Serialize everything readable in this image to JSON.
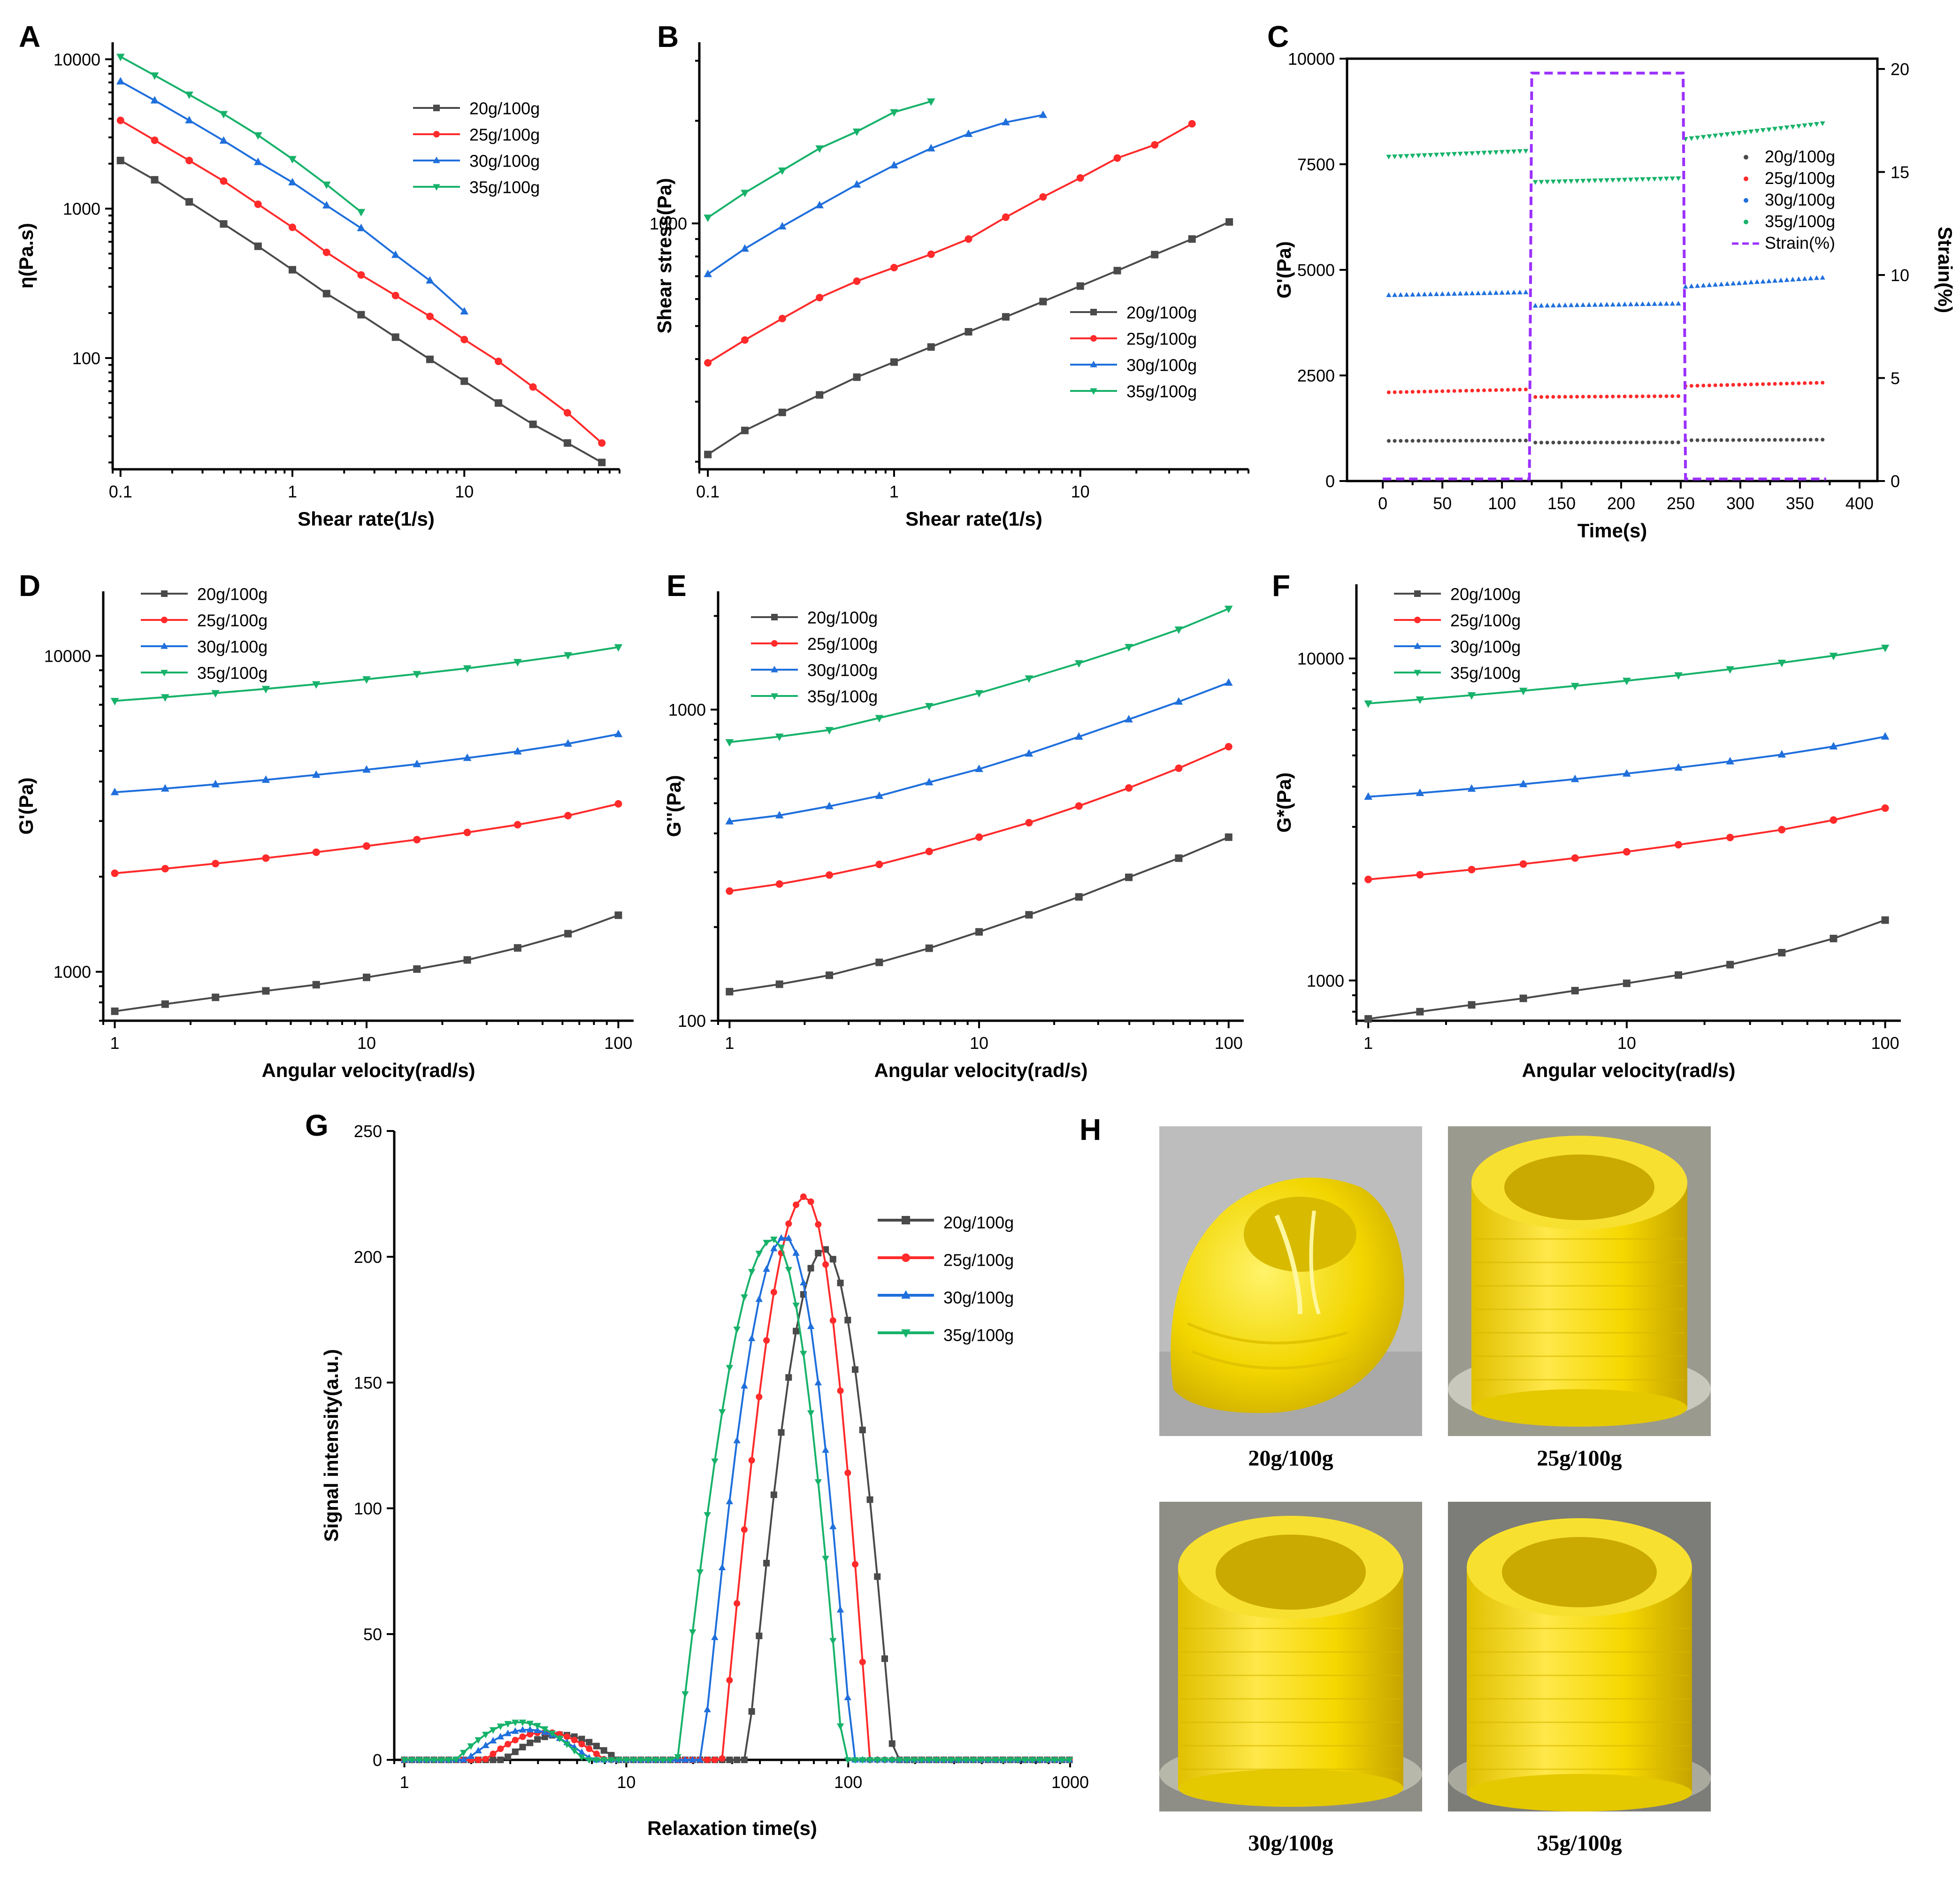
{
  "colors": {
    "20": "#4a4a4a",
    "25": "#ff2a2a",
    "30": "#1f6fdc",
    "35": "#17b26a",
    "strain": "#9b30ff"
  },
  "legend_labels": [
    "20g/100g",
    "25g/100g",
    "30g/100g",
    "35g/100g"
  ],
  "chart_data": [
    {
      "id": "A",
      "type": "line",
      "panel_label": "A",
      "xlabel": "Shear rate(1/s)",
      "ylabel": "η(Pa.s)",
      "xscale": "log",
      "yscale": "log",
      "xlim": [
        0.09,
        80
      ],
      "ylim": [
        18,
        13000
      ],
      "xticks": [
        0.1,
        1,
        10
      ],
      "xtick_labels": [
        "0.1",
        "1",
        "10"
      ],
      "yticks": [
        100,
        1000,
        10000
      ],
      "ytick_labels": [
        "100",
        "1000",
        "10000"
      ],
      "legend": "top-right",
      "series": [
        {
          "name": "20g/100g",
          "marker": "square",
          "x": [
            0.1,
            0.158,
            0.251,
            0.398,
            0.631,
            1,
            1.58,
            2.51,
            3.98,
            6.31,
            10,
            15.8,
            25.1,
            39.8,
            63.1
          ],
          "y": [
            2100,
            1560,
            1110,
            790,
            560,
            390,
            270,
            195,
            138,
            98,
            70,
            50,
            36,
            27,
            20
          ]
        },
        {
          "name": "25g/100g",
          "marker": "circle",
          "x": [
            0.1,
            0.158,
            0.251,
            0.398,
            0.631,
            1,
            1.58,
            2.51,
            3.98,
            6.31,
            10,
            15.8,
            25.1,
            39.8,
            63.1
          ],
          "y": [
            3900,
            2870,
            2100,
            1530,
            1070,
            750,
            510,
            360,
            262,
            190,
            133,
            95,
            64,
            43,
            27
          ]
        },
        {
          "name": "30g/100g",
          "marker": "triangle-up",
          "x": [
            0.1,
            0.158,
            0.251,
            0.398,
            0.631,
            1,
            1.58,
            2.51,
            3.98,
            6.31,
            10
          ],
          "y": [
            7100,
            5300,
            3900,
            2850,
            2050,
            1500,
            1050,
            740,
            490,
            330,
            205
          ]
        },
        {
          "name": "35g/100g",
          "marker": "triangle-down",
          "x": [
            0.1,
            0.158,
            0.251,
            0.398,
            0.631,
            1,
            1.58,
            2.51
          ],
          "y": [
            10400,
            7800,
            5800,
            4300,
            3100,
            2150,
            1450,
            950
          ]
        }
      ]
    },
    {
      "id": "B",
      "type": "line",
      "panel_label": "B",
      "xlabel": "Shear rate(1/s)",
      "ylabel": "Shear stress(Pa)",
      "xscale": "log",
      "yscale": "log",
      "xlim": [
        0.09,
        80
      ],
      "ylim": [
        190,
        3400
      ],
      "xticks": [
        0.1,
        1,
        10
      ],
      "xtick_labels": [
        "0.1",
        "1",
        "10"
      ],
      "yticks": [
        1000
      ],
      "ytick_labels": [
        "1000"
      ],
      "legend": "bottom-right",
      "series": [
        {
          "name": "20g/100g",
          "marker": "square",
          "x": [
            0.1,
            0.158,
            0.251,
            0.398,
            0.631,
            1,
            1.58,
            2.51,
            3.98,
            6.31,
            10,
            15.8,
            25.1,
            39.8,
            63.1
          ],
          "y": [
            210,
            247,
            279,
            314,
            354,
            392,
            434,
            481,
            532,
            590,
            655,
            727,
            810,
            900,
            1010
          ]
        },
        {
          "name": "25g/100g",
          "marker": "circle",
          "x": [
            0.1,
            0.158,
            0.251,
            0.398,
            0.631,
            1,
            1.58,
            2.51,
            3.98,
            6.31,
            10,
            15.8,
            25.1,
            39.8
          ],
          "y": [
            390,
            455,
            526,
            606,
            677,
            742,
            812,
            900,
            1043,
            1196,
            1360,
            1555,
            1700,
            1960
          ]
        },
        {
          "name": "30g/100g",
          "marker": "triangle-up",
          "x": [
            0.1,
            0.158,
            0.251,
            0.398,
            0.631,
            1,
            1.58,
            2.51,
            3.98,
            6.31
          ],
          "y": [
            710,
            843,
            980,
            1130,
            1300,
            1480,
            1660,
            1830,
            1980,
            2080
          ]
        },
        {
          "name": "35g/100g",
          "marker": "triangle-down",
          "x": [
            0.1,
            0.158,
            0.251,
            0.398,
            0.631,
            1,
            1.58
          ],
          "y": [
            1040,
            1230,
            1430,
            1660,
            1860,
            2120,
            2280
          ]
        }
      ]
    },
    {
      "id": "C",
      "type": "scatter",
      "panel_label": "C",
      "xlabel": "Time(s)",
      "ylabel": "G'(Pa)",
      "y2label": "Strain(%)",
      "xlim": [
        -30,
        415
      ],
      "ylim": [
        0,
        10000
      ],
      "y2lim": [
        0,
        20.5
      ],
      "xticks": [
        0,
        50,
        100,
        150,
        200,
        250,
        300,
        350,
        400
      ],
      "xtick_labels": [
        "0",
        "50",
        "100",
        "150",
        "200",
        "250",
        "300",
        "350",
        "400"
      ],
      "yticks": [
        0,
        2500,
        5000,
        7500,
        10000
      ],
      "ytick_labels": [
        "0",
        "2500",
        "5000",
        "7500",
        "10000"
      ],
      "y2ticks": [
        0,
        5,
        10,
        15,
        20
      ],
      "y2tick_labels": [
        "0",
        "5",
        "10",
        "15",
        "20"
      ],
      "legend": "right",
      "series": [
        {
          "name": "20g/100g",
          "segments": [
            [
              5,
              123,
              950,
              960
            ],
            [
              128,
              249,
              910,
              915
            ],
            [
              254,
              372,
              965,
              980
            ]
          ]
        },
        {
          "name": "25g/100g",
          "segments": [
            [
              5,
              123,
              2100,
              2170
            ],
            [
              128,
              249,
              1990,
              2010
            ],
            [
              254,
              372,
              2250,
              2330
            ]
          ]
        },
        {
          "name": "30g/100g",
          "segments": [
            [
              5,
              123,
              4400,
              4470
            ],
            [
              128,
              249,
              4150,
              4200
            ],
            [
              254,
              372,
              4600,
              4820
            ]
          ]
        },
        {
          "name": "35g/100g",
          "segments": [
            [
              5,
              123,
              7680,
              7820
            ],
            [
              128,
              249,
              7080,
              7170
            ],
            [
              254,
              372,
              8100,
              8480
            ]
          ]
        }
      ],
      "strain_series": {
        "name": "Strain(%)",
        "x": [
          0,
          123,
          125,
          252,
          254,
          372
        ],
        "y": [
          0.1,
          0.1,
          19.8,
          19.8,
          0.1,
          0.1
        ]
      }
    },
    {
      "id": "D",
      "type": "line",
      "panel_label": "D",
      "xlabel": "Angular velocity(rad/s)",
      "ylabel": "G'(Pa)",
      "xscale": "log",
      "yscale": "log",
      "xlim": [
        0.9,
        115
      ],
      "ylim": [
        700,
        16000
      ],
      "xticks": [
        1,
        10,
        100
      ],
      "xtick_labels": [
        "1",
        "10",
        "100"
      ],
      "yticks": [
        1000,
        10000
      ],
      "ytick_labels": [
        "1000",
        "10000"
      ],
      "legend": "top-left",
      "series": [
        {
          "name": "20g/100g",
          "marker": "square",
          "x": [
            1,
            1.585,
            2.512,
            3.981,
            6.31,
            10,
            15.85,
            25.12,
            39.81,
            63.1,
            100
          ],
          "y": [
            750,
            790,
            830,
            870,
            910,
            960,
            1020,
            1090,
            1190,
            1320,
            1510
          ]
        },
        {
          "name": "25g/100g",
          "marker": "circle",
          "x": [
            1,
            1.585,
            2.512,
            3.981,
            6.31,
            10,
            15.85,
            25.12,
            39.81,
            63.1,
            100
          ],
          "y": [
            2050,
            2120,
            2200,
            2290,
            2390,
            2500,
            2620,
            2760,
            2920,
            3120,
            3400
          ]
        },
        {
          "name": "30g/100g",
          "marker": "triangle-up",
          "x": [
            1,
            1.585,
            2.512,
            3.981,
            6.31,
            10,
            15.85,
            25.12,
            39.81,
            63.1,
            100
          ],
          "y": [
            3700,
            3800,
            3920,
            4050,
            4200,
            4360,
            4540,
            4750,
            4980,
            5270,
            5650
          ]
        },
        {
          "name": "35g/100g",
          "marker": "triangle-down",
          "x": [
            1,
            1.585,
            2.512,
            3.981,
            6.31,
            10,
            15.85,
            25.12,
            39.81,
            63.1,
            100
          ],
          "y": [
            7200,
            7400,
            7620,
            7860,
            8130,
            8430,
            8760,
            9130,
            9560,
            10050,
            10650
          ]
        }
      ]
    },
    {
      "id": "E",
      "type": "line",
      "panel_label": "E",
      "xlabel": "Angular velocity(rad/s)",
      "ylabel": "G''(Pa)",
      "xscale": "log",
      "yscale": "log",
      "xlim": [
        0.9,
        115
      ],
      "ylim": [
        100,
        2400
      ],
      "xticks": [
        1,
        10,
        100
      ],
      "xtick_labels": [
        "1",
        "10",
        "100"
      ],
      "yticks": [
        100,
        1000
      ],
      "ytick_labels": [
        "100",
        "1000"
      ],
      "legend": "top-left",
      "series": [
        {
          "name": "20g/100g",
          "marker": "square",
          "x": [
            1,
            1.585,
            2.512,
            3.981,
            6.31,
            10,
            15.85,
            25.12,
            39.81,
            63.1,
            100
          ],
          "y": [
            124,
            131,
            140,
            154,
            171,
            193,
            219,
            250,
            289,
            333,
            389
          ]
        },
        {
          "name": "25g/100g",
          "marker": "circle",
          "x": [
            1,
            1.585,
            2.512,
            3.981,
            6.31,
            10,
            15.85,
            25.12,
            39.81,
            63.1,
            100
          ],
          "y": [
            261,
            275,
            294,
            318,
            350,
            389,
            433,
            490,
            560,
            648,
            760
          ]
        },
        {
          "name": "30g/100g",
          "marker": "triangle-up",
          "x": [
            1,
            1.585,
            2.512,
            3.981,
            6.31,
            10,
            15.85,
            25.12,
            39.81,
            63.1,
            100
          ],
          "y": [
            437,
            457,
            489,
            528,
            584,
            644,
            722,
            818,
            930,
            1060,
            1220
          ]
        },
        {
          "name": "35g/100g",
          "marker": "triangle-down",
          "x": [
            1,
            1.585,
            2.512,
            3.981,
            6.31,
            10,
            15.85,
            25.12,
            39.81,
            63.1,
            100
          ],
          "y": [
            786,
            819,
            860,
            940,
            1027,
            1130,
            1260,
            1410,
            1590,
            1810,
            2110
          ]
        }
      ]
    },
    {
      "id": "F",
      "type": "line",
      "panel_label": "F",
      "xlabel": "Angular velocity(rad/s)",
      "ylabel": "G*(Pa)",
      "xscale": "log",
      "yscale": "log",
      "xlim": [
        0.9,
        115
      ],
      "ylim": [
        750,
        17000
      ],
      "xticks": [
        1,
        10,
        100
      ],
      "xtick_labels": [
        "1",
        "10",
        "100"
      ],
      "yticks": [
        1000,
        10000
      ],
      "ytick_labels": [
        "1000",
        "10000"
      ],
      "legend": "top-left",
      "series": [
        {
          "name": "20g/100g",
          "marker": "square",
          "x": [
            1,
            1.585,
            2.512,
            3.981,
            6.31,
            10,
            15.85,
            25.12,
            39.81,
            63.1,
            100
          ],
          "y": [
            760,
            800,
            840,
            880,
            930,
            980,
            1040,
            1120,
            1220,
            1350,
            1540
          ]
        },
        {
          "name": "25g/100g",
          "marker": "circle",
          "x": [
            1,
            1.585,
            2.512,
            3.981,
            6.31,
            10,
            15.85,
            25.12,
            39.81,
            63.1,
            100
          ],
          "y": [
            2060,
            2130,
            2210,
            2300,
            2400,
            2510,
            2640,
            2780,
            2940,
            3150,
            3430
          ]
        },
        {
          "name": "30g/100g",
          "marker": "triangle-up",
          "x": [
            1,
            1.585,
            2.512,
            3.981,
            6.31,
            10,
            15.85,
            25.12,
            39.81,
            63.1,
            100
          ],
          "y": [
            3720,
            3820,
            3940,
            4070,
            4220,
            4390,
            4580,
            4790,
            5030,
            5330,
            5720
          ]
        },
        {
          "name": "35g/100g",
          "marker": "triangle-down",
          "x": [
            1,
            1.585,
            2.512,
            3.981,
            6.31,
            10,
            15.85,
            25.12,
            39.81,
            63.1,
            100
          ],
          "y": [
            7250,
            7460,
            7690,
            7940,
            8220,
            8530,
            8870,
            9260,
            9700,
            10200,
            10800
          ]
        }
      ]
    },
    {
      "id": "G",
      "type": "line",
      "panel_label": "G",
      "xlabel": "Relaxation time(s)",
      "ylabel": "Signal intensity(a.u.)",
      "xscale": "log",
      "xlim": [
        0.9,
        1000
      ],
      "ylim": [
        0,
        250
      ],
      "xticks": [
        1,
        10,
        100,
        1000
      ],
      "xtick_labels": [
        "1",
        "10",
        "100",
        "1000"
      ],
      "yticks": [
        0,
        50,
        100,
        150,
        200,
        250
      ],
      "ytick_labels": [
        "0",
        "50",
        "100",
        "150",
        "200",
        "250"
      ],
      "legend": "top-right",
      "series": [
        {
          "name": "20g/100g",
          "marker": "square",
          "peaks": [
            {
              "center": 5.0,
              "amp": 10,
              "lo": 2.8,
              "hi": 9.2
            },
            {
              "center": 78,
              "amp": 203,
              "lo": 35,
              "hi": 160
            }
          ]
        },
        {
          "name": "25g/100g",
          "marker": "circle",
          "peaks": [
            {
              "center": 4.3,
              "amp": 11,
              "lo": 2.3,
              "hi": 8.0
            },
            {
              "center": 64,
              "amp": 224,
              "lo": 27,
              "hi": 125
            }
          ]
        },
        {
          "name": "30g/100g",
          "marker": "triangle-up",
          "peaks": [
            {
              "center": 3.6,
              "amp": 12,
              "lo": 1.9,
              "hi": 7.0
            },
            {
              "center": 52,
              "amp": 208,
              "lo": 22,
              "hi": 105
            }
          ]
        },
        {
          "name": "35g/100g",
          "marker": "triangle-down",
          "peaks": [
            {
              "center": 3.3,
              "amp": 15,
              "lo": 1.7,
              "hi": 6.5
            },
            {
              "center": 46,
              "amp": 207,
              "lo": 17,
              "hi": 95
            }
          ]
        }
      ]
    }
  ],
  "panel_h": {
    "label": "H",
    "photos": [
      {
        "caption": "20g/100g",
        "kind": "collapsed"
      },
      {
        "caption": "25g/100g",
        "kind": "cylinder"
      },
      {
        "caption": "30g/100g",
        "kind": "cylinder"
      },
      {
        "caption": "35g/100g",
        "kind": "cylinder"
      }
    ]
  }
}
